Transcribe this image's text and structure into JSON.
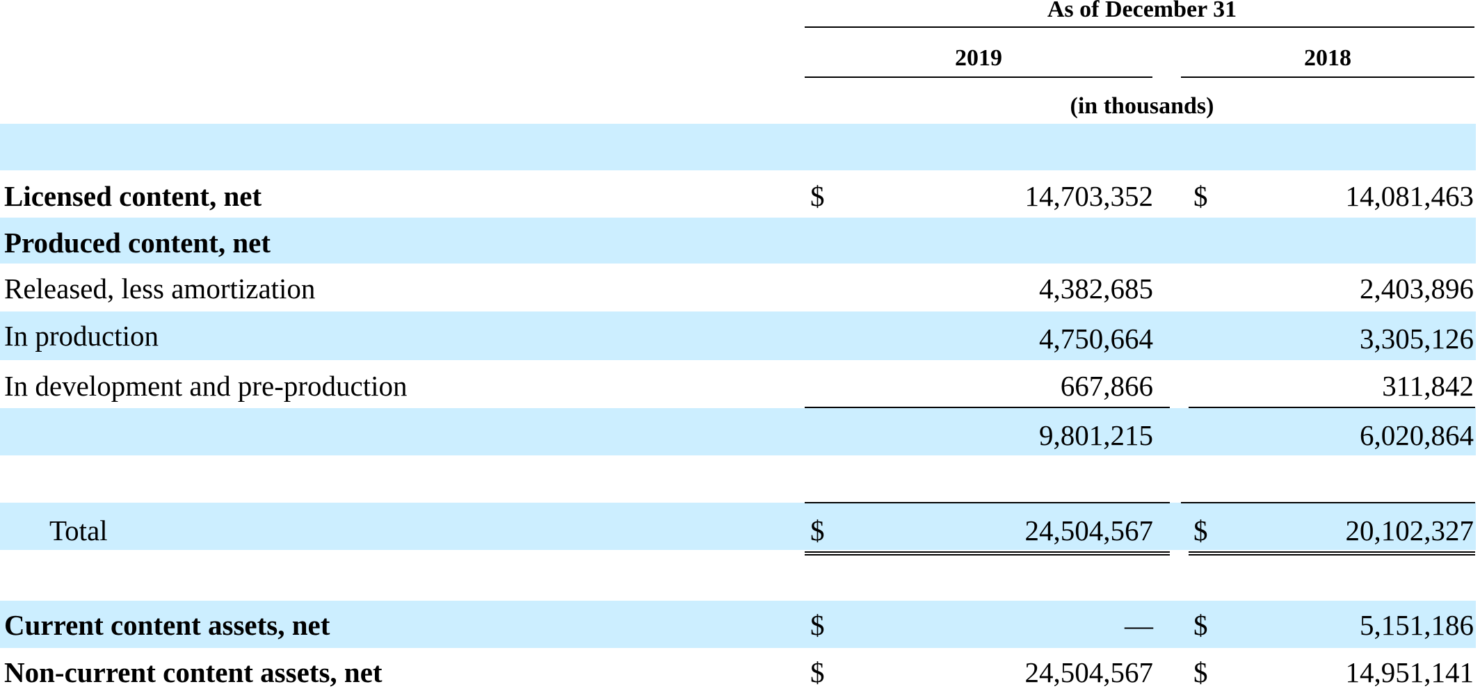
{
  "header": {
    "period_label": "As of December 31",
    "year_2019": "2019",
    "year_2018": "2018",
    "units": "(in thousands)"
  },
  "rows": {
    "licensed": {
      "label": "Licensed content, net",
      "cur_2019": "$",
      "val_2019": "14,703,352",
      "cur_2018": "$",
      "val_2018": "14,081,463"
    },
    "produced": {
      "label": "Produced content, net"
    },
    "released": {
      "label": "Released, less amortization",
      "val_2019": "4,382,685",
      "val_2018": "2,403,896"
    },
    "in_production": {
      "label": "In production",
      "val_2019": "4,750,664",
      "val_2018": "3,305,126"
    },
    "in_development": {
      "label": "In development and pre-production",
      "val_2019": "667,866",
      "val_2018": "311,842"
    },
    "produced_subtotal": {
      "val_2019": "9,801,215",
      "val_2018": "6,020,864"
    },
    "total": {
      "label": "Total",
      "cur_2019": "$",
      "val_2019": "24,504,567",
      "cur_2018": "$",
      "val_2018": "20,102,327"
    },
    "current": {
      "label": "Current content assets, net",
      "cur_2019": "$",
      "val_2019": "—",
      "cur_2018": "$",
      "val_2018": "5,151,186"
    },
    "non_current": {
      "label": "Non-current content assets, net",
      "cur_2019": "$",
      "val_2019": "24,504,567",
      "cur_2018": "$",
      "val_2018": "14,951,141"
    }
  },
  "colors": {
    "row_band": "#cceeff",
    "text": "#000000"
  }
}
